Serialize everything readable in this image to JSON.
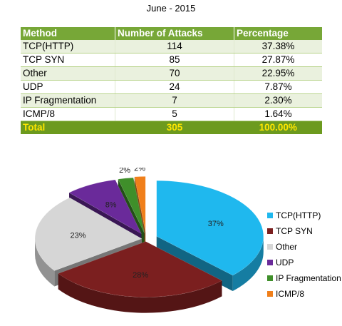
{
  "title": "June - 2015",
  "table": {
    "headers": [
      "Method",
      "Number of Attacks",
      "Percentage"
    ],
    "rows": [
      {
        "method": "TCP(HTTP)",
        "attacks": "114",
        "pct": "37.38%"
      },
      {
        "method": "TCP SYN",
        "attacks": "85",
        "pct": "27.87%"
      },
      {
        "method": "Other",
        "attacks": "70",
        "pct": "22.95%"
      },
      {
        "method": "UDP",
        "attacks": "24",
        "pct": "7.87%"
      },
      {
        "method": "IP Fragmentation",
        "attacks": "7",
        "pct": "2.30%"
      },
      {
        "method": "ICMP/8",
        "attacks": "5",
        "pct": "1.64%"
      }
    ],
    "total": {
      "method": "Total",
      "attacks": "305",
      "pct": "100.00%"
    }
  },
  "colors": {
    "header_bg": "#77a737",
    "total_bg": "#6c9a1e",
    "total_text": "#ffe600"
  },
  "chart_data": {
    "type": "pie",
    "style": "3d-exploded",
    "legend_position": "right",
    "slices": [
      {
        "name": "TCP(HTTP)",
        "value": 114,
        "label": "37%",
        "color": "#1fb8ee"
      },
      {
        "name": "TCP SYN",
        "value": 85,
        "label": "28%",
        "color": "#7b1f1f"
      },
      {
        "name": "Other",
        "value": 70,
        "label": "23%",
        "color": "#d6d6d6"
      },
      {
        "name": "UDP",
        "value": 24,
        "label": "8%",
        "color": "#6a2a9a"
      },
      {
        "name": "IP Fragmentation",
        "value": 7,
        "label": "2%",
        "color": "#3f8f2a"
      },
      {
        "name": "ICMP/8",
        "value": 5,
        "label": "2%",
        "color": "#f07f1a"
      }
    ]
  }
}
